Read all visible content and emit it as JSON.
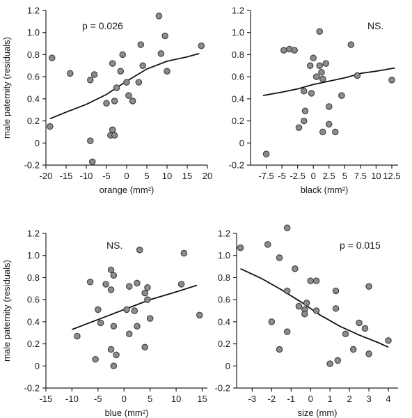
{
  "chart_data": [
    {
      "type": "scatter",
      "xlabel": "orange (mm²)",
      "ylabel": "male paternity (residuals)",
      "annotation": "p = 0.026",
      "xlim": [
        -20,
        20
      ],
      "ylim": [
        -0.2,
        1.2
      ],
      "x_ticks": [
        -20,
        -15,
        -10,
        -5,
        0,
        5,
        10,
        15,
        20
      ],
      "x_tick_labels": [
        "-20",
        "-15",
        "-10",
        "-5",
        "0",
        "5",
        "10",
        "15",
        "20"
      ],
      "y_ticks": [
        -0.2,
        0,
        0.2,
        0.4,
        0.6,
        0.8,
        1.0,
        1.2
      ],
      "y_tick_labels": [
        "-0.2",
        "0",
        "0.2",
        "0.4",
        "0.6",
        "0.8",
        "1.0",
        "1.2"
      ],
      "points": [
        {
          "x": -18.5,
          "y": 0.77
        },
        {
          "x": -19.0,
          "y": 0.15
        },
        {
          "x": -14.0,
          "y": 0.63
        },
        {
          "x": -9.0,
          "y": 0.57
        },
        {
          "x": -8.0,
          "y": 0.62
        },
        {
          "x": -9.0,
          "y": 0.02
        },
        {
          "x": -8.5,
          "y": -0.17
        },
        {
          "x": -5.0,
          "y": 0.36
        },
        {
          "x": -4.0,
          "y": 0.07
        },
        {
          "x": -3.5,
          "y": 0.12
        },
        {
          "x": -3.0,
          "y": 0.07
        },
        {
          "x": -3.5,
          "y": 0.72
        },
        {
          "x": -3.0,
          "y": 0.38
        },
        {
          "x": -2.5,
          "y": 0.5
        },
        {
          "x": -1.5,
          "y": 0.65
        },
        {
          "x": -1.0,
          "y": 0.8
        },
        {
          "x": 0.0,
          "y": 0.55
        },
        {
          "x": 0.5,
          "y": 0.43
        },
        {
          "x": 1.5,
          "y": 0.38
        },
        {
          "x": 3.0,
          "y": 0.55
        },
        {
          "x": 4.0,
          "y": 0.7
        },
        {
          "x": 3.5,
          "y": 0.89
        },
        {
          "x": 8.0,
          "y": 1.15
        },
        {
          "x": 8.5,
          "y": 0.81
        },
        {
          "x": 9.5,
          "y": 0.97
        },
        {
          "x": 10.0,
          "y": 0.65
        },
        {
          "x": 18.5,
          "y": 0.88
        }
      ],
      "fit_line": [
        {
          "x": -19.0,
          "y": 0.22
        },
        {
          "x": -15.0,
          "y": 0.28
        },
        {
          "x": -10.0,
          "y": 0.35
        },
        {
          "x": -5.0,
          "y": 0.44
        },
        {
          "x": 0.0,
          "y": 0.56
        },
        {
          "x": 5.0,
          "y": 0.67
        },
        {
          "x": 10.0,
          "y": 0.74
        },
        {
          "x": 15.0,
          "y": 0.78
        },
        {
          "x": 18.0,
          "y": 0.81
        }
      ]
    },
    {
      "type": "scatter",
      "xlabel": "black (mm²)",
      "ylabel": "",
      "annotation": "NS.",
      "xlim": [
        -10,
        13.5
      ],
      "ylim": [
        -0.2,
        1.2
      ],
      "x_ticks": [
        -7.5,
        -5,
        -2.5,
        0,
        2.5,
        5,
        7.5,
        10,
        12.5
      ],
      "x_tick_labels": [
        "-7.5",
        "-5",
        "-2.5",
        "0",
        "2.5",
        "5",
        "7.5",
        "10",
        "12.5"
      ],
      "y_ticks": [
        -0.2,
        0,
        0.2,
        0.4,
        0.6,
        0.8,
        1.0,
        1.2
      ],
      "y_tick_labels": [
        "-0.2",
        "0",
        "0.2",
        "0.4",
        "0.6",
        "0.8",
        "1.0",
        "1.2"
      ],
      "points": [
        {
          "x": -7.5,
          "y": -0.1
        },
        {
          "x": -4.7,
          "y": 0.84
        },
        {
          "x": -3.8,
          "y": 0.85
        },
        {
          "x": -3.0,
          "y": 0.84
        },
        {
          "x": -2.3,
          "y": 0.14
        },
        {
          "x": -1.5,
          "y": 0.47
        },
        {
          "x": -1.3,
          "y": 0.29
        },
        {
          "x": -1.5,
          "y": 0.2
        },
        {
          "x": -0.5,
          "y": 0.7
        },
        {
          "x": 0.0,
          "y": 0.77
        },
        {
          "x": -0.3,
          "y": 0.45
        },
        {
          "x": 0.5,
          "y": 0.6
        },
        {
          "x": 1.0,
          "y": 0.7
        },
        {
          "x": 1.0,
          "y": 1.01
        },
        {
          "x": 1.3,
          "y": 0.64
        },
        {
          "x": 1.5,
          "y": 0.58
        },
        {
          "x": 1.5,
          "y": 0.1
        },
        {
          "x": 2.0,
          "y": 0.72
        },
        {
          "x": 2.5,
          "y": 0.33
        },
        {
          "x": 2.5,
          "y": 0.17
        },
        {
          "x": 3.5,
          "y": 0.1
        },
        {
          "x": 4.5,
          "y": 0.43
        },
        {
          "x": 6.0,
          "y": 0.89
        },
        {
          "x": 7.0,
          "y": 0.61
        },
        {
          "x": 12.5,
          "y": 0.57
        }
      ],
      "fit_line": [
        {
          "x": -8.0,
          "y": 0.43
        },
        {
          "x": -5.0,
          "y": 0.46
        },
        {
          "x": -2.5,
          "y": 0.49
        },
        {
          "x": 0.0,
          "y": 0.53
        },
        {
          "x": 2.5,
          "y": 0.56
        },
        {
          "x": 5.0,
          "y": 0.59
        },
        {
          "x": 7.5,
          "y": 0.63
        },
        {
          "x": 10.0,
          "y": 0.65
        },
        {
          "x": 13.0,
          "y": 0.68
        }
      ]
    },
    {
      "type": "scatter",
      "xlabel": "blue  (mm²)",
      "ylabel": "male paternity (residuals)",
      "annotation": "NS.",
      "xlim": [
        -15,
        16
      ],
      "ylim": [
        -0.2,
        1.2
      ],
      "x_ticks": [
        -15,
        -10,
        -5,
        0,
        5,
        10,
        15
      ],
      "x_tick_labels": [
        "-15",
        "-10",
        "-5",
        "0",
        "5",
        "10",
        "15"
      ],
      "y_ticks": [
        -0.2,
        0,
        0.2,
        0.4,
        0.6,
        0.8,
        1.0,
        1.2
      ],
      "y_tick_labels": [
        "-0.2",
        "0",
        "0.2",
        "0.4",
        "0.6",
        "0.8",
        "1.0",
        "1.2"
      ],
      "points": [
        {
          "x": -9.0,
          "y": 0.27
        },
        {
          "x": -6.5,
          "y": 0.76
        },
        {
          "x": -5.5,
          "y": 0.06
        },
        {
          "x": -5.0,
          "y": 0.51
        },
        {
          "x": -4.5,
          "y": 0.39
        },
        {
          "x": -3.5,
          "y": 0.74
        },
        {
          "x": -2.5,
          "y": 0.87
        },
        {
          "x": -2.5,
          "y": 0.69
        },
        {
          "x": -2.5,
          "y": 0.15
        },
        {
          "x": -2.0,
          "y": 0.82
        },
        {
          "x": -2.0,
          "y": 0.36
        },
        {
          "x": -1.5,
          "y": 0.1
        },
        {
          "x": -2.0,
          "y": 0.0
        },
        {
          "x": 0.5,
          "y": 0.51
        },
        {
          "x": 1.0,
          "y": 0.72
        },
        {
          "x": 1.0,
          "y": 0.29
        },
        {
          "x": 2.0,
          "y": 0.5
        },
        {
          "x": 2.5,
          "y": 0.36
        },
        {
          "x": 2.5,
          "y": 0.75
        },
        {
          "x": 3.0,
          "y": 1.05
        },
        {
          "x": 4.0,
          "y": 0.66
        },
        {
          "x": 4.5,
          "y": 0.71
        },
        {
          "x": 4.5,
          "y": 0.6
        },
        {
          "x": 4.0,
          "y": 0.17
        },
        {
          "x": 5.0,
          "y": 0.43
        },
        {
          "x": 11.0,
          "y": 0.74
        },
        {
          "x": 11.5,
          "y": 1.02
        },
        {
          "x": 14.5,
          "y": 0.46
        }
      ],
      "fit_line": [
        {
          "x": -10.0,
          "y": 0.33
        },
        {
          "x": -5.0,
          "y": 0.42
        },
        {
          "x": 0.0,
          "y": 0.51
        },
        {
          "x": 5.0,
          "y": 0.6
        },
        {
          "x": 10.0,
          "y": 0.67
        },
        {
          "x": 14.0,
          "y": 0.73
        }
      ]
    },
    {
      "type": "scatter",
      "xlabel": "size  (mm)",
      "ylabel": "",
      "annotation": "p = 0.015",
      "xlim": [
        -3.8,
        4.5
      ],
      "ylim": [
        -0.2,
        1.2
      ],
      "x_ticks": [
        -3,
        -2,
        -1,
        0,
        1,
        2,
        3,
        4
      ],
      "x_tick_labels": [
        "-3",
        "-2",
        "-1",
        "0",
        "1",
        "2",
        "3",
        "4"
      ],
      "y_ticks": [
        -0.2,
        0,
        0.2,
        0.4,
        0.6,
        0.8,
        1.0,
        1.2
      ],
      "y_tick_labels": [
        "-0.2",
        "0",
        "0.2",
        "0.4",
        "0.6",
        "0.8",
        "1.0",
        "1.2"
      ],
      "points": [
        {
          "x": -3.6,
          "y": 1.07
        },
        {
          "x": -2.2,
          "y": 1.1
        },
        {
          "x": -2.0,
          "y": 0.4
        },
        {
          "x": -1.6,
          "y": 0.98
        },
        {
          "x": -1.6,
          "y": 0.15
        },
        {
          "x": -1.2,
          "y": 1.25
        },
        {
          "x": -1.2,
          "y": 0.68
        },
        {
          "x": -1.2,
          "y": 0.31
        },
        {
          "x": -0.8,
          "y": 0.88
        },
        {
          "x": -0.6,
          "y": 0.54
        },
        {
          "x": -0.3,
          "y": 0.51
        },
        {
          "x": -0.2,
          "y": 0.57
        },
        {
          "x": -0.3,
          "y": 0.47
        },
        {
          "x": 0.0,
          "y": 0.77
        },
        {
          "x": 0.3,
          "y": 0.77
        },
        {
          "x": 0.3,
          "y": 0.5
        },
        {
          "x": 1.0,
          "y": 0.02
        },
        {
          "x": 1.3,
          "y": 0.68
        },
        {
          "x": 1.3,
          "y": 0.52
        },
        {
          "x": 1.4,
          "y": 0.05
        },
        {
          "x": 1.8,
          "y": 0.29
        },
        {
          "x": 2.2,
          "y": 0.15
        },
        {
          "x": 2.5,
          "y": 0.39
        },
        {
          "x": 2.8,
          "y": 0.34
        },
        {
          "x": 3.0,
          "y": 0.72
        },
        {
          "x": 3.0,
          "y": 0.11
        },
        {
          "x": 4.0,
          "y": 0.23
        }
      ],
      "fit_line": [
        {
          "x": -3.6,
          "y": 0.88
        },
        {
          "x": -2.5,
          "y": 0.79
        },
        {
          "x": -1.5,
          "y": 0.69
        },
        {
          "x": -0.5,
          "y": 0.58
        },
        {
          "x": 0.5,
          "y": 0.46
        },
        {
          "x": 1.5,
          "y": 0.36
        },
        {
          "x": 2.5,
          "y": 0.28
        },
        {
          "x": 3.5,
          "y": 0.21
        },
        {
          "x": 4.0,
          "y": 0.17
        }
      ]
    }
  ]
}
